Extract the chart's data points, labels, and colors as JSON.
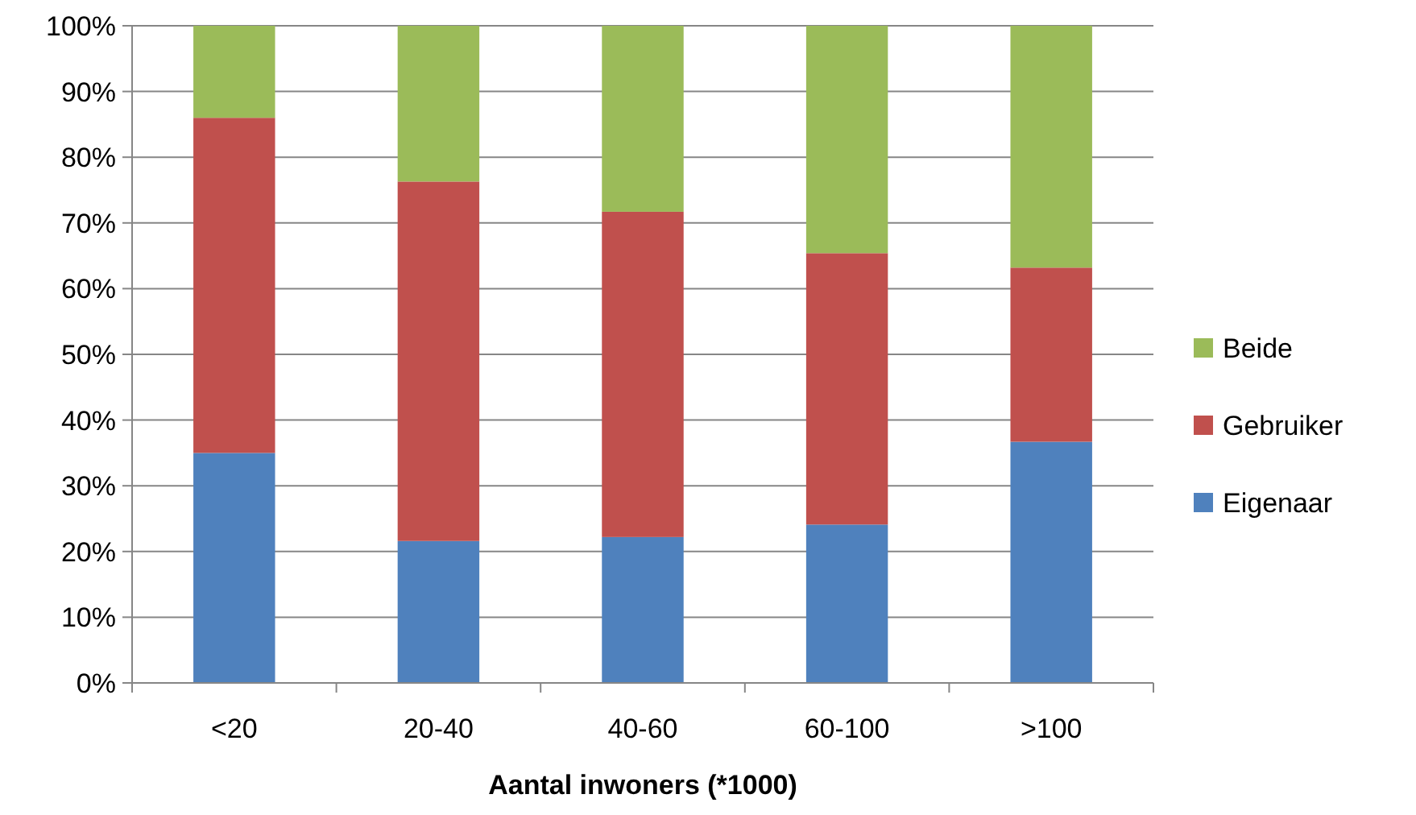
{
  "chart_data": {
    "type": "bar",
    "stacked": true,
    "xlabel": "Aantal inwoners (*1000)",
    "categories": [
      "<20",
      "20-40",
      "40-60",
      "60-100",
      ">100"
    ],
    "series": [
      {
        "name": "Eigenaar",
        "color": "#4f81bd",
        "values": [
          35,
          21.6,
          22.2,
          24.1,
          36.7
        ]
      },
      {
        "name": "Gebruiker",
        "color": "#c0504d",
        "values": [
          51,
          54.7,
          49.5,
          41.3,
          26.5
        ]
      },
      {
        "name": "Beide",
        "color": "#9bbb59",
        "values": [
          14,
          23.7,
          28.3,
          34.6,
          36.8
        ]
      }
    ],
    "ylim": [
      0,
      100
    ],
    "yticks": [
      {
        "value": 0,
        "label": "0%"
      },
      {
        "value": 10,
        "label": "10%"
      },
      {
        "value": 20,
        "label": "20%"
      },
      {
        "value": 30,
        "label": "30%"
      },
      {
        "value": 40,
        "label": "40%"
      },
      {
        "value": 50,
        "label": "50%"
      },
      {
        "value": 60,
        "label": "60%"
      },
      {
        "value": 70,
        "label": "70%"
      },
      {
        "value": 80,
        "label": "80%"
      },
      {
        "value": 90,
        "label": "90%"
      },
      {
        "value": 100,
        "label": "100%"
      }
    ],
    "grid": "y",
    "legend": "right"
  }
}
